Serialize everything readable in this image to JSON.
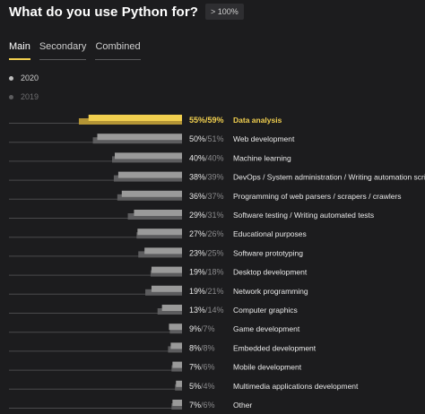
{
  "header": {
    "title": "What do you use Python for?",
    "badge": "> 100%"
  },
  "tabs": [
    {
      "label": "Main",
      "active": true
    },
    {
      "label": "Secondary",
      "active": false
    },
    {
      "label": "Combined",
      "active": false
    }
  ],
  "colors": {
    "background": "#1c1c1e",
    "series_2020_bar": "#9a9a9a",
    "series_2019_bar": "#5c5c5e",
    "highlight_2020_bar": "#f1cf4f",
    "highlight_2019_bar": "#b39435",
    "highlight_text": "#f1cf4f",
    "axis_line": "#4a4a4c",
    "active_tab_underline": "#f1cf4f"
  },
  "chart_data": {
    "type": "bar",
    "orientation": "horizontal",
    "legend_position": "top-left",
    "series": [
      {
        "name": "2020",
        "values": [
          55,
          50,
          40,
          38,
          36,
          29,
          27,
          23,
          19,
          19,
          13,
          9,
          8,
          7,
          5,
          7
        ]
      },
      {
        "name": "2019",
        "values": [
          59,
          51,
          40,
          39,
          37,
          31,
          26,
          25,
          18,
          21,
          14,
          7,
          8,
          6,
          4,
          6
        ]
      }
    ],
    "categories": [
      "Data analysis",
      "Web development",
      "Machine learning",
      "DevOps / System administration / Writing automation scripts",
      "Programming of web parsers / scrapers / crawlers",
      "Software testing / Writing automated tests",
      "Educational purposes",
      "Software prototyping",
      "Desktop development",
      "Network programming",
      "Computer graphics",
      "Game development",
      "Embedded development",
      "Mobile development",
      "Multimedia applications development",
      "Other"
    ],
    "value_labels_2020": [
      "55%",
      "50%",
      "40%",
      "38%",
      "36%",
      "29%",
      "27%",
      "23%",
      "19%",
      "19%",
      "13%",
      "9%",
      "8%",
      "7%",
      "5%",
      "7%"
    ],
    "value_labels_2019": [
      "/59%",
      "/51%",
      "/40%",
      "/39%",
      "/37%",
      "/31%",
      "/26%",
      "/25%",
      "/18%",
      "/21%",
      "/14%",
      "/7%",
      "/8%",
      "/6%",
      "/4%",
      "/6%"
    ],
    "highlighted_category": "Data analysis",
    "grid": false
  }
}
